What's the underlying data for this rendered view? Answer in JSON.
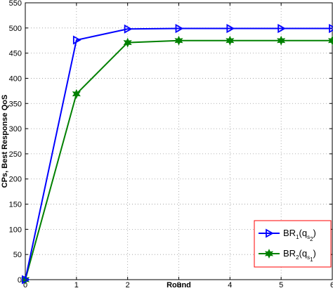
{
  "chart_data": {
    "type": "line",
    "xlabel": "Round",
    "ylabel": "CPs, Best Response QoS",
    "xlim": [
      0,
      6
    ],
    "ylim": [
      0,
      550
    ],
    "x_ticks": [
      "0",
      "1",
      "2",
      "3",
      "4",
      "5",
      "6"
    ],
    "y_ticks": [
      "0",
      "50",
      "100",
      "150",
      "200",
      "250",
      "300",
      "350",
      "400",
      "450",
      "500",
      "550"
    ],
    "grid": true,
    "legend_position": "bottom-right",
    "x": [
      0,
      1,
      2,
      3,
      4,
      5,
      6
    ],
    "series": [
      {
        "name": "BR1(qs2)",
        "legend_main": "BR",
        "legend_sub1": "1",
        "legend_paren_open": "(q",
        "legend_sub2": "s",
        "legend_sub3": "2",
        "legend_paren_close": ")",
        "values": [
          0,
          476,
          498,
          499,
          499,
          499,
          499
        ],
        "color": "#0000ff",
        "marker": "triangle-right"
      },
      {
        "name": "BR2(qs1)",
        "legend_main": "BR",
        "legend_sub1": "2",
        "legend_paren_open": "(q",
        "legend_sub2": "s",
        "legend_sub3": "1",
        "legend_paren_close": ")",
        "values": [
          0,
          369,
          471,
          475,
          475,
          475,
          475
        ],
        "color": "#008000",
        "marker": "hexagram"
      }
    ],
    "legend_border_color": "#ff0000"
  }
}
